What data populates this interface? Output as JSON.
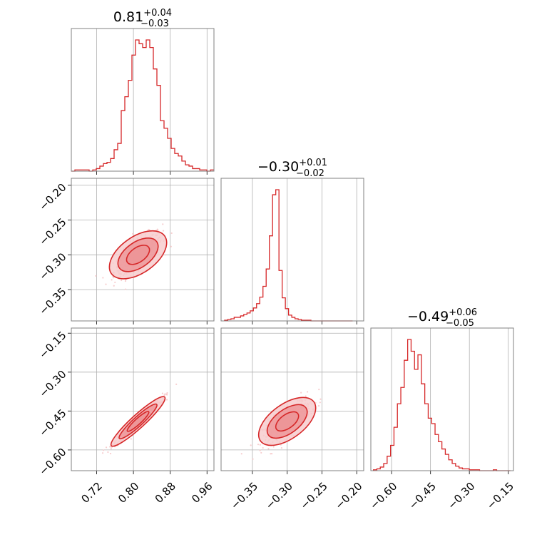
{
  "colors": {
    "accent": "#d62728",
    "fill_light": "#f6c9ca",
    "fill_mid": "#ec9496",
    "grid": "#b0b0b0",
    "frame": "#808080"
  },
  "chart_data": {
    "type": "corner",
    "parameters": [
      {
        "title_main": "0.81",
        "title_plus": "+0.04",
        "title_minus": "−0.03",
        "range": [
          0.665,
          0.975
        ],
        "ticks": [
          0.72,
          0.8,
          0.88,
          0.96
        ],
        "tick_labels": [
          "0.72",
          "0.80",
          "0.88",
          "0.96"
        ],
        "histogram": {
          "bin_edges_start": 0.665,
          "bin_width": 0.00775,
          "counts": [
            0,
            1,
            1,
            1,
            1,
            0,
            1,
            2,
            4,
            6,
            7,
            10,
            17,
            22,
            48,
            59,
            72,
            92,
            104,
            101,
            98,
            104,
            98,
            81,
            68,
            40,
            34,
            26,
            18,
            14,
            12,
            8,
            5,
            4,
            2,
            2,
            1,
            1,
            0,
            1
          ]
        }
      },
      {
        "title_main": "−0.30",
        "title_plus": "+0.01",
        "title_minus": "−0.02",
        "range": [
          -0.395,
          -0.19
        ],
        "ticks": [
          -0.35,
          -0.3,
          -0.25,
          -0.2
        ],
        "tick_labels": [
          "−0.35",
          "−0.30",
          "−0.25",
          "−0.20"
        ],
        "histogram": {
          "bin_edges_start": -0.39,
          "bin_width": 0.0046,
          "counts": [
            1,
            2,
            3,
            5,
            5,
            7,
            9,
            11,
            14,
            18,
            24,
            33,
            48,
            72,
            118,
            175,
            182,
            70,
            32,
            17,
            8,
            5,
            3,
            2,
            1,
            1,
            1,
            0,
            0,
            0,
            0,
            0,
            0,
            0,
            0,
            0,
            0,
            0,
            0,
            0
          ]
        }
      },
      {
        "title_main": "−0.49",
        "title_plus": "+0.06",
        "title_minus": "−0.05",
        "range": [
          -0.68,
          -0.13
        ],
        "ticks": [
          -0.6,
          -0.45,
          -0.3,
          -0.15
        ],
        "tick_labels": [
          "−0.60",
          "−0.45",
          "−0.30",
          "−0.15"
        ],
        "histogram": {
          "bin_edges_start": -0.67,
          "bin_width": 0.0132,
          "counts": [
            1,
            2,
            4,
            8,
            16,
            28,
            48,
            74,
            92,
            122,
            145,
            132,
            112,
            128,
            96,
            74,
            58,
            52,
            40,
            32,
            24,
            18,
            12,
            8,
            5,
            3,
            2,
            2,
            1,
            1,
            1,
            0,
            0,
            0,
            0,
            1,
            0,
            0,
            0,
            0
          ]
        }
      }
    ],
    "pairs": [
      {
        "row": 1,
        "col": 0,
        "corr": 0.75
      },
      {
        "row": 2,
        "col": 0,
        "corr": 0.97
      },
      {
        "row": 2,
        "col": 1,
        "corr": 0.78
      }
    ],
    "y_ticks": {
      "1": [
        -0.2,
        -0.25,
        -0.3,
        -0.35
      ],
      "2": [
        -0.15,
        -0.3,
        -0.45,
        -0.6
      ]
    },
    "y_tick_labels": {
      "1": [
        "−0.20",
        "−0.25",
        "−0.30",
        "−0.35"
      ],
      "2": [
        "−0.15",
        "−0.30",
        "−0.45",
        "−0.60"
      ]
    },
    "grid": true
  }
}
